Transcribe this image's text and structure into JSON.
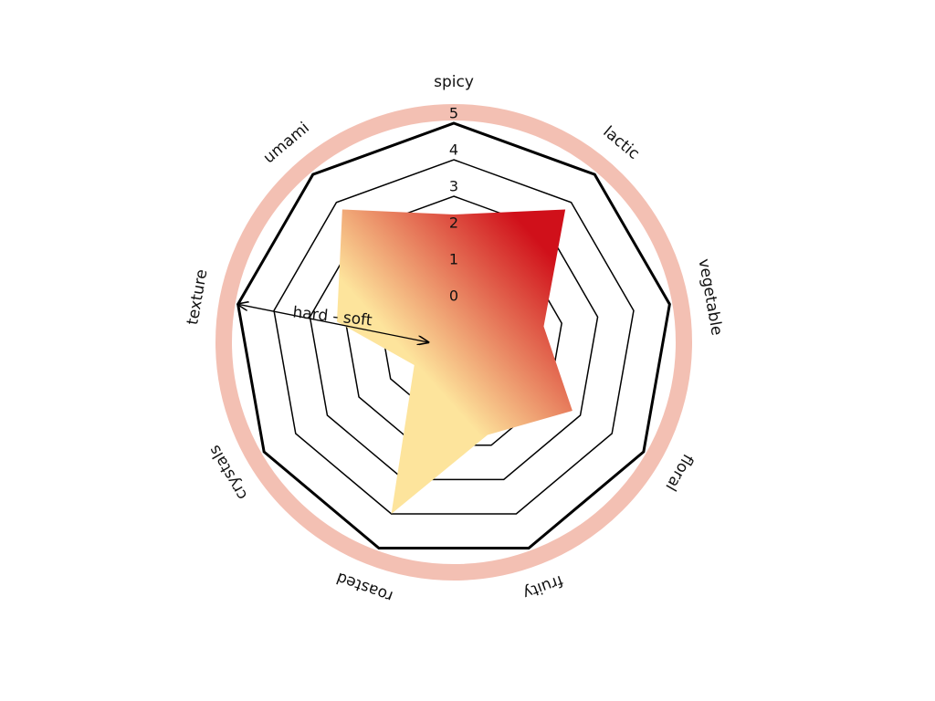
{
  "chart_data": {
    "type": "radar",
    "categories": [
      "spicy",
      "lactic",
      "vegetable",
      "floral",
      "fruity",
      "roasted",
      "crystals",
      "texture",
      "umami"
    ],
    "values": [
      2.5,
      3.75,
      1.5,
      2.75,
      1.7,
      4,
      0.25,
      2.25,
      3.75
    ],
    "ylim": [
      0,
      5
    ],
    "yticks": [
      0,
      1,
      2,
      3,
      4,
      5
    ],
    "colors": [
      "#fde49c",
      "#d0101a"
    ],
    "annotation": "hard - soft"
  }
}
